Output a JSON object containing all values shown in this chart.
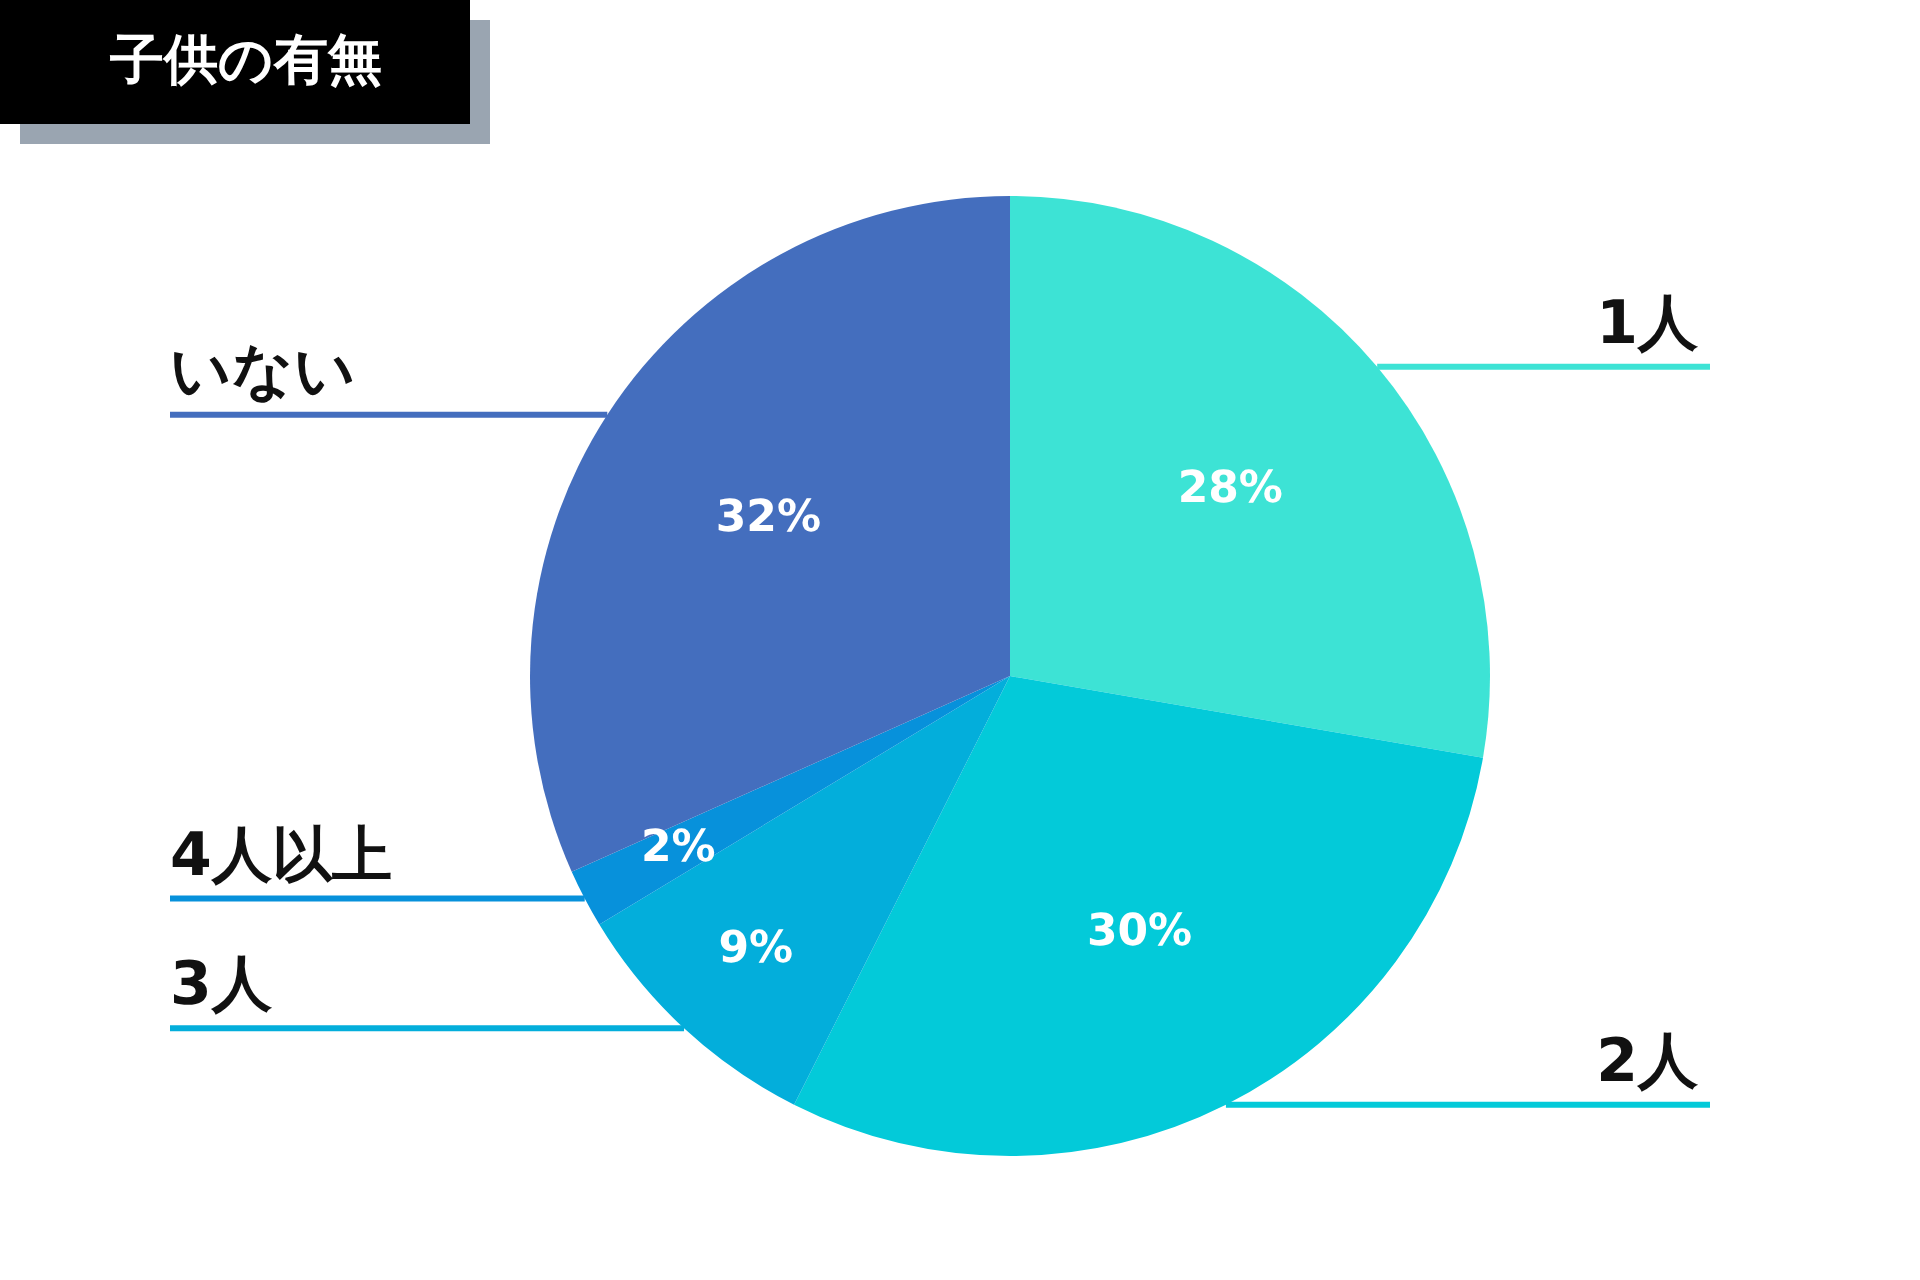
{
  "chart_data": {
    "type": "pie",
    "title": "子供の有無",
    "categories": [
      "1人",
      "2人",
      "3人",
      "4人以上",
      "いない"
    ],
    "values": [
      28,
      30,
      9,
      2,
      32
    ],
    "value_labels": [
      "28%",
      "30%",
      "9%",
      "2%",
      "32%"
    ],
    "colors": [
      "#3de3d5",
      "#03cad9",
      "#03aedb",
      "#0791db",
      "#446ebe"
    ]
  }
}
